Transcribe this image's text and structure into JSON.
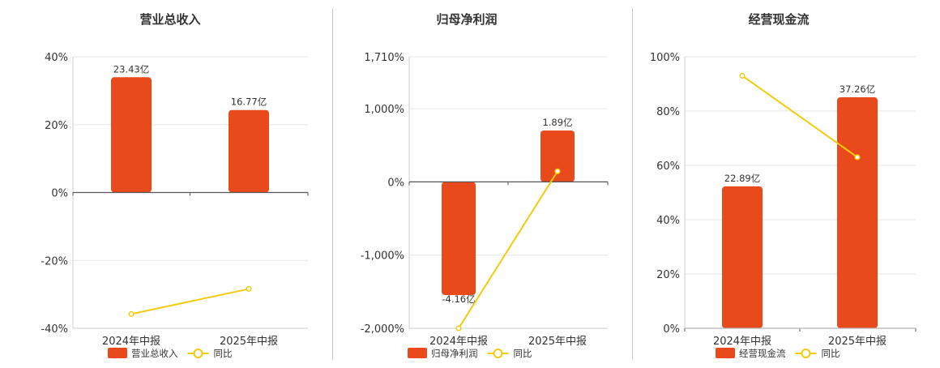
{
  "colors": {
    "bar": "#e84a1c",
    "line": "#f2cc0c",
    "grid": "#e6e6e6",
    "axis": "#555555"
  },
  "chart_data": [
    {
      "type": "bar",
      "title": "营业总收入",
      "categories": [
        "2024年中报",
        "2025年中报"
      ],
      "series": [
        {
          "name": "营业总收入",
          "type": "bar",
          "values": [
            23.43,
            16.77
          ],
          "labels": [
            "23.43亿",
            "16.77亿"
          ]
        },
        {
          "name": "同比",
          "type": "line",
          "values": [
            -35.8,
            -28.4
          ]
        }
      ],
      "ylim": [
        -40,
        40
      ],
      "yticks": [
        40,
        20,
        0,
        -20,
        -40
      ],
      "ytick_labels": [
        "40%",
        "20%",
        "0%",
        "-20%",
        "-40%"
      ],
      "bar_axis_max": 27.6,
      "grid": true,
      "legend": "bottom"
    },
    {
      "type": "bar",
      "title": "归母净利润",
      "categories": [
        "2024年中报",
        "2025年中报"
      ],
      "series": [
        {
          "name": "归母净利润",
          "type": "bar",
          "values": [
            -4.16,
            1.89
          ],
          "labels": [
            "-4.16亿",
            "1.89亿"
          ]
        },
        {
          "name": "同比",
          "type": "line",
          "values": [
            -2000,
            145
          ]
        }
      ],
      "ylim": [
        -2000,
        1710
      ],
      "yticks": [
        1710,
        1000,
        0,
        -1000,
        -2000
      ],
      "ytick_labels": [
        "1,710%",
        "1,000%",
        "0%",
        "-1,000%",
        "-2,000%"
      ],
      "bar_axis_max": 4.6,
      "grid": true,
      "legend": "bottom"
    },
    {
      "type": "bar",
      "title": "经营现金流",
      "categories": [
        "2024年中报",
        "2025年中报"
      ],
      "series": [
        {
          "name": "经营现金流",
          "type": "bar",
          "values": [
            22.89,
            37.26
          ],
          "labels": [
            "22.89亿",
            "37.26亿"
          ]
        },
        {
          "name": "同比",
          "type": "line",
          "values": [
            93,
            63
          ]
        }
      ],
      "ylim": [
        0,
        100
      ],
      "yticks": [
        100,
        80,
        60,
        40,
        20,
        0
      ],
      "ytick_labels": [
        "100%",
        "80%",
        "60%",
        "40%",
        "20%",
        "0%"
      ],
      "bar_axis_max": 43.8,
      "grid": true,
      "legend": "bottom"
    }
  ]
}
